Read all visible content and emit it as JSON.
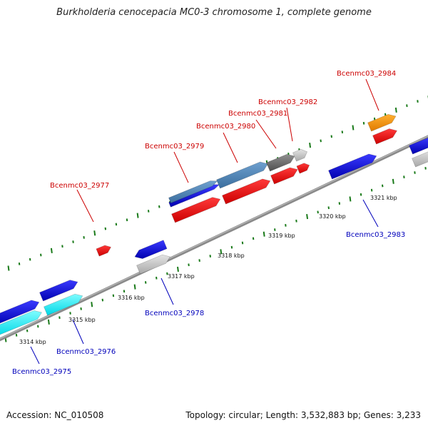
{
  "title": "Burkholderia cenocepacia MC0-3 chromosome 1, complete genome",
  "accession_text": "Accession: NC_010508",
  "summary_text": "Topology: circular; Length: 3,532,883 bp; Genes: 3,233",
  "colors": {
    "label_red": "#cc0000",
    "label_blue": "#0000bb",
    "tick_green": "#1a7a1a",
    "backbone": "#808080"
  },
  "scale_labels": [
    "3314 kbp",
    "3315 kbp",
    "3316 kbp",
    "3317 kbp",
    "3318 kbp",
    "3319 kbp",
    "3320 kbp",
    "3321 kbp"
  ],
  "gene_labels_top": [
    "Bcenmc03_2977",
    "Bcenmc03_2979",
    "Bcenmc03_2980",
    "Bcenmc03_2981",
    "Bcenmc03_2982",
    "Bcenmc03_2984"
  ],
  "gene_labels_bottom": [
    "Bcenmc03_2975",
    "Bcenmc03_2976",
    "Bcenmc03_2978",
    "Bcenmc03_2983"
  ]
}
